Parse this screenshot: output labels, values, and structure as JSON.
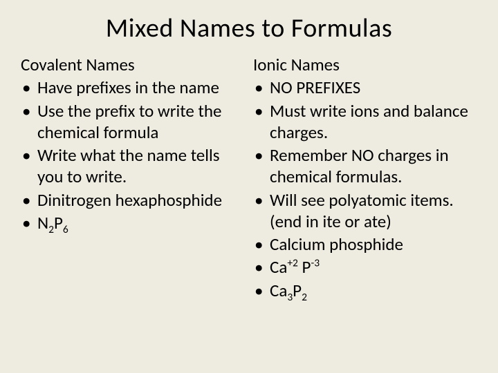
{
  "background_color": "#eeece1",
  "text_color": "#000000",
  "font_family": "Calibri",
  "title": {
    "text": "Mixed Names to Formulas",
    "fontsize": 38,
    "weight": 400,
    "align": "center"
  },
  "body_fontsize": 25,
  "columns": {
    "left": {
      "heading": "Covalent Names",
      "items": [
        {
          "text": "Have prefixes in the name"
        },
        {
          "text": "Use the prefix to write the chemical formula"
        },
        {
          "text": "Write what the name tells you to write."
        },
        {
          "text": "Dinitrogen hexaphosphide"
        },
        {
          "html": true,
          "parts": [
            "N",
            {
              "sub": "2"
            },
            "P",
            {
              "sub": "6"
            }
          ]
        }
      ]
    },
    "right": {
      "heading": "Ionic Names",
      "items": [
        {
          "text": "NO PREFIXES"
        },
        {
          "text": "Must write ions and balance charges."
        },
        {
          "text": "Remember NO charges in chemical formulas."
        },
        {
          "text": "Will see polyatomic items. (end in ite or ate)"
        },
        {
          "text": "Calcium phosphide"
        },
        {
          "html": true,
          "parts": [
            "Ca",
            {
              "sup": "+2"
            },
            " P",
            {
              "sup": "-3"
            }
          ]
        },
        {
          "html": true,
          "parts": [
            "Ca",
            {
              "sub": "3"
            },
            "P",
            {
              "sub": "2"
            }
          ]
        }
      ]
    }
  }
}
